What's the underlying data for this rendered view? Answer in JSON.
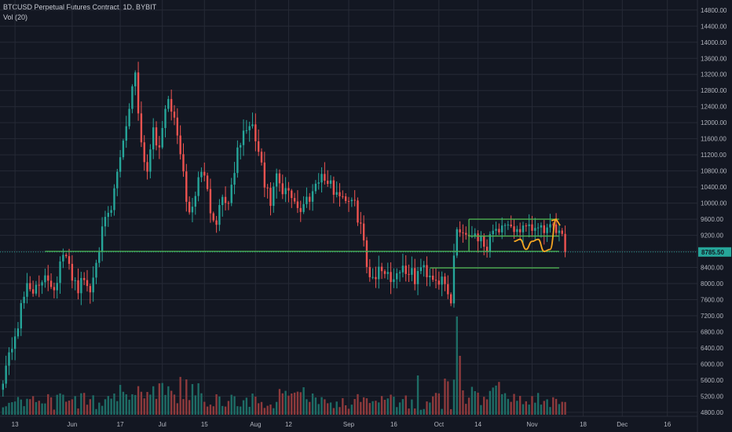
{
  "legend": {
    "title": "BTCUSD Perpetual Futures Contract, 1D, BYBIT",
    "indicator": "Vol (20)"
  },
  "chart_data": {
    "type": "candlestick",
    "symbol": "BTCUSD",
    "interval": "1D",
    "exchange": "BYBIT",
    "current_price": "8785.50",
    "y_ticks": [
      "14800.00",
      "14400.00",
      "14000.00",
      "13600.00",
      "13200.00",
      "12800.00",
      "12400.00",
      "12000.00",
      "11600.00",
      "11200.00",
      "10800.00",
      "10400.00",
      "10000.00",
      "9600.00",
      "9200.00",
      "8800.00",
      "8400.00",
      "8000.00",
      "7600.00",
      "7200.00",
      "6800.00",
      "6400.00",
      "6000.00",
      "5600.00",
      "5200.00",
      "4800.00"
    ],
    "ylim": [
      4700,
      15050
    ],
    "x_ticks": [
      {
        "label": "13",
        "day": 13
      },
      {
        "label": "Jun",
        "day": 32
      },
      {
        "label": "17",
        "day": 48
      },
      {
        "label": "Jul",
        "day": 62
      },
      {
        "label": "15",
        "day": 76
      },
      {
        "label": "Aug",
        "day": 93
      },
      {
        "label": "12",
        "day": 104
      },
      {
        "label": "Sep",
        "day": 124
      },
      {
        "label": "16",
        "day": 139
      },
      {
        "label": "Oct",
        "day": 154
      },
      {
        "label": "14",
        "day": 167
      },
      {
        "label": "Nov",
        "day": 185
      },
      {
        "label": "18",
        "day": 202
      },
      {
        "label": "Dec",
        "day": 215
      },
      {
        "label": "16",
        "day": 230
      }
    ],
    "xlim": [
      8,
      240
    ],
    "last_candle_day": 196,
    "price_anchors": [
      [
        9,
        5700
      ],
      [
        11,
        6200
      ],
      [
        14,
        7000
      ],
      [
        17,
        8000
      ],
      [
        19,
        7900
      ],
      [
        21,
        7800
      ],
      [
        23,
        8300
      ],
      [
        26,
        7900
      ],
      [
        29,
        8700
      ],
      [
        31,
        8400
      ],
      [
        34,
        7900
      ],
      [
        36,
        8100
      ],
      [
        38,
        7800
      ],
      [
        40,
        8700
      ],
      [
        43,
        9500
      ],
      [
        45,
        9800
      ],
      [
        48,
        11200
      ],
      [
        51,
        12400
      ],
      [
        53,
        13300
      ],
      [
        55,
        11500
      ],
      [
        57,
        10800
      ],
      [
        59,
        12000
      ],
      [
        61,
        11200
      ],
      [
        63,
        12500
      ],
      [
        65,
        12300
      ],
      [
        67,
        11800
      ],
      [
        69,
        10600
      ],
      [
        71,
        9700
      ],
      [
        73,
        10200
      ],
      [
        75,
        10900
      ],
      [
        78,
        9900
      ],
      [
        80,
        9600
      ],
      [
        82,
        10200
      ],
      [
        84,
        10000
      ],
      [
        86,
        10900
      ],
      [
        88,
        11500
      ],
      [
        90,
        11900
      ],
      [
        92,
        11800
      ],
      [
        94,
        11300
      ],
      [
        96,
        10400
      ],
      [
        98,
        10000
      ],
      [
        100,
        10600
      ],
      [
        102,
        10200
      ],
      [
        104,
        10300
      ],
      [
        106,
        10100
      ],
      [
        108,
        9800
      ],
      [
        110,
        10100
      ],
      [
        112,
        10300
      ],
      [
        114,
        10700
      ],
      [
        116,
        10600
      ],
      [
        118,
        10400
      ],
      [
        120,
        10300
      ],
      [
        122,
        10200
      ],
      [
        124,
        10100
      ],
      [
        126,
        9900
      ],
      [
        128,
        9500
      ],
      [
        130,
        8400
      ],
      [
        132,
        8200
      ],
      [
        134,
        8300
      ],
      [
        136,
        8400
      ],
      [
        138,
        8100
      ],
      [
        140,
        8300
      ],
      [
        142,
        8400
      ],
      [
        144,
        8300
      ],
      [
        146,
        8100
      ],
      [
        148,
        8400
      ],
      [
        150,
        8300
      ],
      [
        152,
        8200
      ],
      [
        154,
        8100
      ],
      [
        156,
        7900
      ],
      [
        158,
        7500
      ],
      [
        159,
        8700
      ],
      [
        160,
        9400
      ],
      [
        162,
        9300
      ],
      [
        164,
        9200
      ],
      [
        166,
        9300
      ],
      [
        168,
        9100
      ],
      [
        170,
        8800
      ]
    ],
    "series": [
      {
        "name": "Vol (20)",
        "type": "volume"
      }
    ],
    "annotations": [
      {
        "type": "hline",
        "price": 8800,
        "from_day": 23,
        "to_day": 194,
        "color": "#4caf50"
      },
      {
        "type": "hline",
        "price": 9600,
        "from_day": 164,
        "to_day": 194,
        "color": "#4caf50"
      },
      {
        "type": "hline",
        "price": 9180,
        "from_day": 164,
        "to_day": 194,
        "color": "#4caf50"
      },
      {
        "type": "hline",
        "price": 8390,
        "from_day": 151,
        "to_day": 194,
        "color": "#4caf50"
      },
      {
        "type": "vline",
        "day": 164,
        "from_price": 8800,
        "to_price": 9600,
        "color": "#4caf50"
      },
      {
        "type": "projection_path",
        "color": "#f5a623"
      }
    ],
    "grid": true,
    "price_axis": "right",
    "colors": {
      "background": "#131722",
      "up": "#26a69a",
      "down": "#ef5350",
      "volume_up": "#1e6d66",
      "volume_down": "#8e3a3c",
      "grid": "#262a36",
      "price_line": "#26a69a",
      "level_lines": "#4caf50",
      "projection": "#f5a623"
    }
  }
}
